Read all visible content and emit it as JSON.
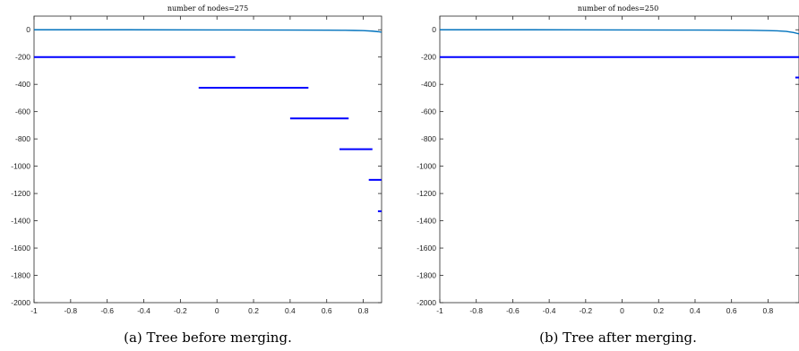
{
  "chart_data": [
    {
      "type": "line",
      "title": "number of nodes=275",
      "caption": "(a) Tree before merging.",
      "xlim": [
        -1,
        0.9
      ],
      "ylim": [
        -2000,
        100
      ],
      "xticks": [
        -1,
        -0.8,
        -0.6,
        -0.4,
        -0.2,
        0,
        0.2,
        0.4,
        0.6,
        0.8
      ],
      "xtick_labels": [
        "-1",
        "-0.8",
        "-0.6",
        "-0.4",
        "-0.2",
        "0",
        "0.2",
        "0.4",
        "0.6",
        "0.8"
      ],
      "yticks": [
        0,
        -200,
        -400,
        -600,
        -800,
        -1000,
        -1200,
        -1400,
        -1600,
        -1800,
        -2000
      ],
      "ytick_labels": [
        "0",
        "-200",
        "-400",
        "-600",
        "-800",
        "-1000",
        "-1200",
        "-1400",
        "-1600",
        "-1800",
        "-2000"
      ],
      "grid": false,
      "curve": {
        "color": "#0072bd",
        "points": [
          [
            -1,
            0
          ],
          [
            -0.5,
            0
          ],
          [
            0,
            -1
          ],
          [
            0.4,
            -2
          ],
          [
            0.6,
            -3
          ],
          [
            0.7,
            -4
          ],
          [
            0.75,
            -5
          ],
          [
            0.8,
            -6
          ],
          [
            0.85,
            -10
          ],
          [
            0.88,
            -14
          ],
          [
            0.9,
            -18
          ]
        ]
      },
      "segments": [
        {
          "x0": -1.0,
          "x1": 0.1,
          "y": -200
        },
        {
          "x0": -0.1,
          "x1": 0.5,
          "y": -425
        },
        {
          "x0": 0.4,
          "x1": 0.72,
          "y": -650
        },
        {
          "x0": 0.67,
          "x1": 0.85,
          "y": -875
        },
        {
          "x0": 0.83,
          "x1": 0.9,
          "y": -1100
        },
        {
          "x0": 0.88,
          "x1": 0.9,
          "y": -1330
        }
      ],
      "segment_color": "#0000ff"
    },
    {
      "type": "line",
      "title": "number of nodes=250",
      "caption": "(b) Tree after merging.",
      "xlim": [
        -1,
        0.97
      ],
      "ylim": [
        -2000,
        100
      ],
      "xticks": [
        -1,
        -0.8,
        -0.6,
        -0.4,
        -0.2,
        0,
        0.2,
        0.4,
        0.6,
        0.8
      ],
      "xtick_labels": [
        "-1",
        "-0.8",
        "-0.6",
        "-0.4",
        "-0.2",
        "0",
        "0.2",
        "0.4",
        "0.6",
        "0.8"
      ],
      "yticks": [
        0,
        -200,
        -400,
        -600,
        -800,
        -1000,
        -1200,
        -1400,
        -1600,
        -1800,
        -2000
      ],
      "ytick_labels": [
        "0",
        "-200",
        "-400",
        "-600",
        "-800",
        "-1000",
        "-1200",
        "-1400",
        "-1600",
        "-1800",
        "-2000"
      ],
      "grid": false,
      "curve": {
        "color": "#0072bd",
        "points": [
          [
            -1,
            0
          ],
          [
            -0.5,
            0
          ],
          [
            0,
            -1
          ],
          [
            0.4,
            -2
          ],
          [
            0.6,
            -3
          ],
          [
            0.7,
            -4
          ],
          [
            0.8,
            -6
          ],
          [
            0.85,
            -8
          ],
          [
            0.9,
            -12
          ],
          [
            0.94,
            -20
          ],
          [
            0.97,
            -30
          ]
        ]
      },
      "segments": [
        {
          "x0": -1.0,
          "x1": 0.97,
          "y": -200
        },
        {
          "x0": 0.95,
          "x1": 0.97,
          "y": -350
        }
      ],
      "segment_color": "#0000ff"
    }
  ]
}
